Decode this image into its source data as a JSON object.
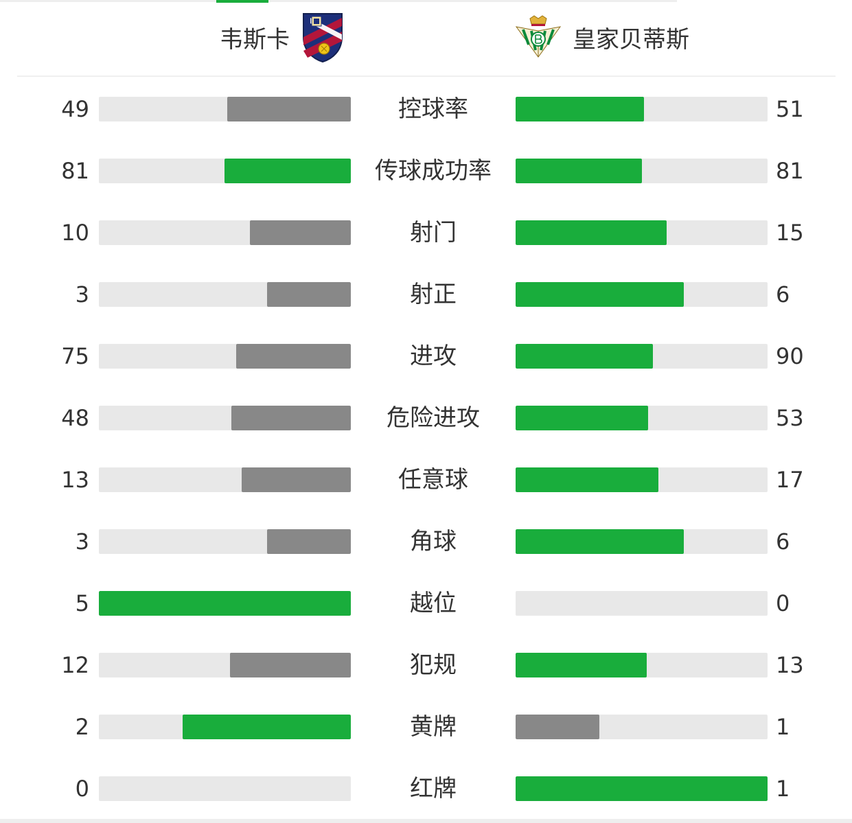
{
  "colors": {
    "leader": "#19ad3c",
    "trailer": "#888888",
    "track": "#e8e8e8",
    "text": "#333333"
  },
  "teams": {
    "home": {
      "name": "韦斯卡",
      "crest_icon": "sd-huesca-crest-icon"
    },
    "away": {
      "name": "皇家贝蒂斯",
      "crest_icon": "real-betis-crest-icon"
    }
  },
  "stats": [
    {
      "label": "控球率",
      "home": 49,
      "away": 51,
      "home_fill": 0.49,
      "away_fill": 0.51,
      "home_color": "#888888",
      "away_color": "#19ad3c"
    },
    {
      "label": "传球成功率",
      "home": 81,
      "away": 81,
      "home_fill": 0.5,
      "away_fill": 0.5,
      "home_color": "#19ad3c",
      "away_color": "#19ad3c"
    },
    {
      "label": "射门",
      "home": 10,
      "away": 15,
      "home_fill": 0.4,
      "away_fill": 0.6,
      "home_color": "#888888",
      "away_color": "#19ad3c"
    },
    {
      "label": "射正",
      "home": 3,
      "away": 6,
      "home_fill": 0.333,
      "away_fill": 0.667,
      "home_color": "#888888",
      "away_color": "#19ad3c"
    },
    {
      "label": "进攻",
      "home": 75,
      "away": 90,
      "home_fill": 0.455,
      "away_fill": 0.545,
      "home_color": "#888888",
      "away_color": "#19ad3c"
    },
    {
      "label": "危险进攻",
      "home": 48,
      "away": 53,
      "home_fill": 0.475,
      "away_fill": 0.525,
      "home_color": "#888888",
      "away_color": "#19ad3c"
    },
    {
      "label": "任意球",
      "home": 13,
      "away": 17,
      "home_fill": 0.433,
      "away_fill": 0.567,
      "home_color": "#888888",
      "away_color": "#19ad3c"
    },
    {
      "label": "角球",
      "home": 3,
      "away": 6,
      "home_fill": 0.333,
      "away_fill": 0.667,
      "home_color": "#888888",
      "away_color": "#19ad3c"
    },
    {
      "label": "越位",
      "home": 5,
      "away": 0,
      "home_fill": 1.0,
      "away_fill": 0.0,
      "home_color": "#19ad3c",
      "away_color": "#888888"
    },
    {
      "label": "犯规",
      "home": 12,
      "away": 13,
      "home_fill": 0.48,
      "away_fill": 0.52,
      "home_color": "#888888",
      "away_color": "#19ad3c"
    },
    {
      "label": "黄牌",
      "home": 2,
      "away": 1,
      "home_fill": 0.667,
      "away_fill": 0.333,
      "home_color": "#19ad3c",
      "away_color": "#888888"
    },
    {
      "label": "红牌",
      "home": 0,
      "away": 1,
      "home_fill": 0.0,
      "away_fill": 1.0,
      "home_color": "#888888",
      "away_color": "#19ad3c"
    }
  ]
}
